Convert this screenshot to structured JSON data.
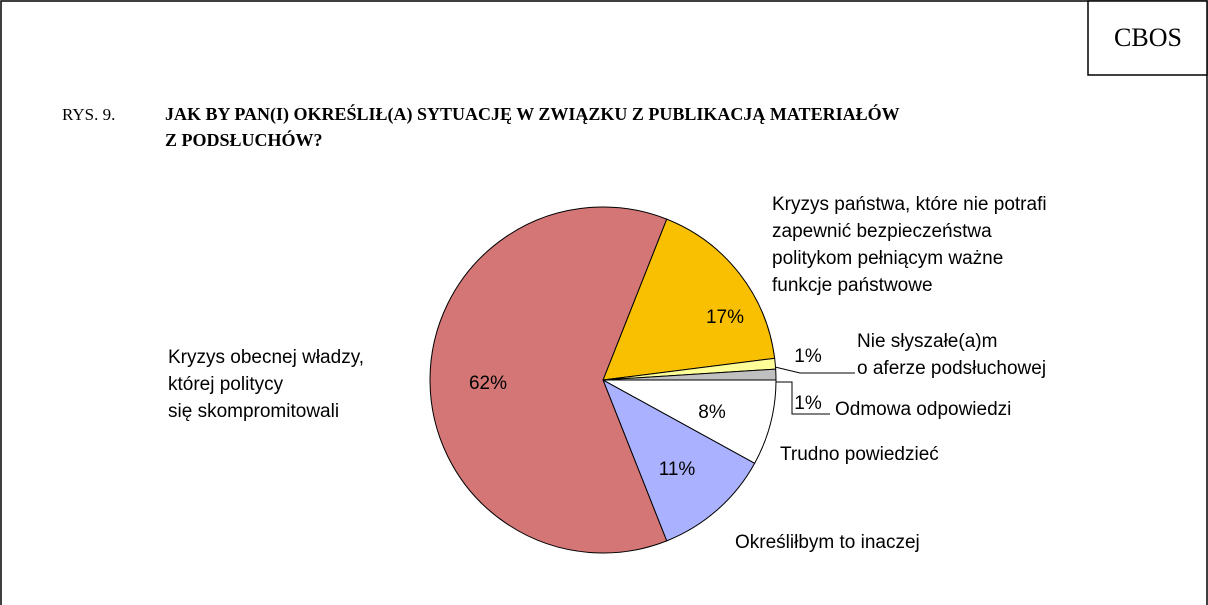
{
  "chart_data": {
    "type": "pie",
    "badge": "CBOS",
    "figure_number": "RYS. 9.",
    "title": "JAK BY PAN(I) OKREŚLIŁ(A) SYTUACJĘ W ZWIĄZKU Z PUBLIKACJĄ MATERIAŁÓW\nZ PODSŁUCHÓW?",
    "categories": [
      "Kryzys państwa, które nie potrafi\nzapewnić bezpieczeństwa\npolitykom pełniącym ważne\nfunkcje państwowe",
      "Nie słyszałe(a)m\no aferze podsłuchowej",
      "Odmowa odpowiedzi",
      "Trudno powiedzieć",
      "Określiłbym to inaczej",
      "Kryzys obecnej władzy,\nktórej politycy\nsię skompromitowali"
    ],
    "values": [
      17,
      1,
      1,
      8,
      11,
      62
    ],
    "value_labels": [
      "17%",
      "1%",
      "1%",
      "8%",
      "11%",
      "62%"
    ],
    "colors": [
      "#f8c000",
      "#ffff99",
      "#c0c0c0",
      "#ffffff",
      "#aab2ff",
      "#d47676"
    ]
  }
}
